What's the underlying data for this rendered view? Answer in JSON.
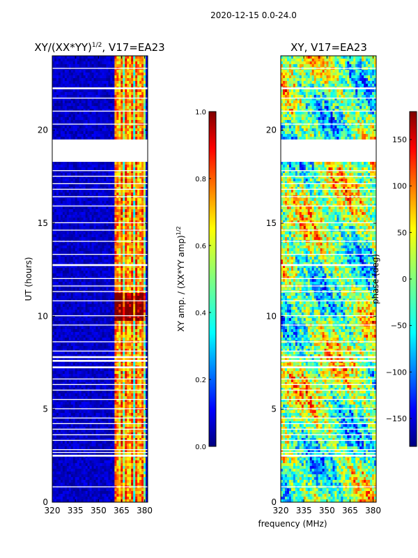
{
  "suptitle": "2020-12-15 0.0-24.0",
  "xlabel_shared": "frequency (MHz)",
  "colors": {
    "no_data": "#ffffff",
    "jet": [
      "#00007f",
      "#0000ff",
      "#007fff",
      "#00ffff",
      "#7fff7f",
      "#ffff00",
      "#ff7f00",
      "#ff0000",
      "#7f0000"
    ]
  },
  "chart_data": [
    {
      "type": "heatmap",
      "title": "XY/(XX*YY)",
      "title_sup": "1/2",
      "title_suffix": ", V17=EA23",
      "xlabel": "",
      "ylabel": "UT (hours)",
      "xlim": [
        320,
        382
      ],
      "ylim": [
        0,
        24
      ],
      "xticks": [
        "320",
        "335",
        "350",
        "365",
        "380"
      ],
      "xtick_values": [
        320,
        335,
        350,
        365,
        380
      ],
      "yticks": [
        "0",
        "5",
        "10",
        "15",
        "20"
      ],
      "ytick_values": [
        0,
        5,
        10,
        15,
        20
      ],
      "band_MHz": [
        360,
        380
      ],
      "colorbar": {
        "label": "XY amp. / (XX*YY amp)",
        "label_sup": "1/2",
        "range": [
          0.0,
          1.0
        ],
        "ticks": [
          "0.0",
          "0.2",
          "0.4",
          "0.6",
          "0.8",
          "1.0"
        ],
        "tick_values": [
          0.0,
          0.2,
          0.4,
          0.6,
          0.8,
          1.0
        ]
      },
      "gaps_hours": [
        [
          18.3,
          19.5
        ],
        [
          0.8,
          0.85
        ],
        [
          2.45,
          2.55
        ],
        [
          2.65,
          2.7
        ],
        [
          2.8,
          2.85
        ],
        [
          3.3,
          3.35
        ],
        [
          3.6,
          3.65
        ],
        [
          3.9,
          3.95
        ],
        [
          4.2,
          4.25
        ],
        [
          4.5,
          4.55
        ],
        [
          5.0,
          5.05
        ],
        [
          5.5,
          5.55
        ],
        [
          6.0,
          6.05
        ],
        [
          6.3,
          6.35
        ],
        [
          6.6,
          6.65
        ],
        [
          7.2,
          7.3
        ],
        [
          7.55,
          7.65
        ],
        [
          7.75,
          7.85
        ],
        [
          8.1,
          8.15
        ],
        [
          8.6,
          8.65
        ],
        [
          9.5,
          9.55
        ],
        [
          10.0,
          10.05
        ],
        [
          10.8,
          10.85
        ],
        [
          11.3,
          11.35
        ],
        [
          11.6,
          11.65
        ],
        [
          12.0,
          12.05
        ],
        [
          12.7,
          12.8
        ],
        [
          13.3,
          13.35
        ],
        [
          14.0,
          14.05
        ],
        [
          14.6,
          14.65
        ],
        [
          15.0,
          15.05
        ],
        [
          15.9,
          15.95
        ],
        [
          16.4,
          16.45
        ],
        [
          16.8,
          16.85
        ],
        [
          17.1,
          17.15
        ],
        [
          17.5,
          17.55
        ],
        [
          17.8,
          17.85
        ],
        [
          20.3,
          20.35
        ],
        [
          21.0,
          21.05
        ],
        [
          21.7,
          21.75
        ],
        [
          22.2,
          22.3
        ],
        [
          23.3,
          23.35
        ]
      ]
    },
    {
      "type": "heatmap",
      "title": "XY, V17=EA23",
      "xlabel": "frequency (MHz)",
      "ylabel": "",
      "xlim": [
        320,
        382
      ],
      "ylim": [
        0,
        24
      ],
      "xticks": [
        "320",
        "335",
        "350",
        "365",
        "380"
      ],
      "xtick_values": [
        320,
        335,
        350,
        365,
        380
      ],
      "yticks": [
        "0",
        "5",
        "10",
        "15",
        "20"
      ],
      "ytick_values": [
        0,
        5,
        10,
        15,
        20
      ],
      "colorbar": {
        "label": "phase (deg)",
        "range": [
          -180,
          180
        ],
        "ticks": [
          "−150",
          "−100",
          "−50",
          "0",
          "50",
          "100",
          "150"
        ],
        "tick_values": [
          -150,
          -100,
          -50,
          0,
          50,
          100,
          150
        ]
      },
      "gaps_hours": [
        [
          18.3,
          19.5
        ],
        [
          0.8,
          0.85
        ],
        [
          2.45,
          2.55
        ],
        [
          2.65,
          2.7
        ],
        [
          2.8,
          2.85
        ],
        [
          3.3,
          3.35
        ],
        [
          3.6,
          3.65
        ],
        [
          3.9,
          3.95
        ],
        [
          4.2,
          4.25
        ],
        [
          4.5,
          4.55
        ],
        [
          5.0,
          5.05
        ],
        [
          5.5,
          5.55
        ],
        [
          6.0,
          6.05
        ],
        [
          6.3,
          6.35
        ],
        [
          6.6,
          6.65
        ],
        [
          7.2,
          7.3
        ],
        [
          7.55,
          7.65
        ],
        [
          7.75,
          7.85
        ],
        [
          8.1,
          8.15
        ],
        [
          8.6,
          8.65
        ],
        [
          9.5,
          9.55
        ],
        [
          10.0,
          10.05
        ],
        [
          10.8,
          10.85
        ],
        [
          11.3,
          11.35
        ],
        [
          11.6,
          11.65
        ],
        [
          12.0,
          12.05
        ],
        [
          12.7,
          12.8
        ],
        [
          13.3,
          13.35
        ],
        [
          14.0,
          14.05
        ],
        [
          14.6,
          14.65
        ],
        [
          15.0,
          15.05
        ],
        [
          15.9,
          15.95
        ],
        [
          16.4,
          16.45
        ],
        [
          16.8,
          16.85
        ],
        [
          17.1,
          17.15
        ],
        [
          17.5,
          17.55
        ],
        [
          17.8,
          17.85
        ],
        [
          20.3,
          20.35
        ],
        [
          21.0,
          21.05
        ],
        [
          21.7,
          21.75
        ],
        [
          22.2,
          22.3
        ],
        [
          23.3,
          23.35
        ]
      ]
    }
  ]
}
